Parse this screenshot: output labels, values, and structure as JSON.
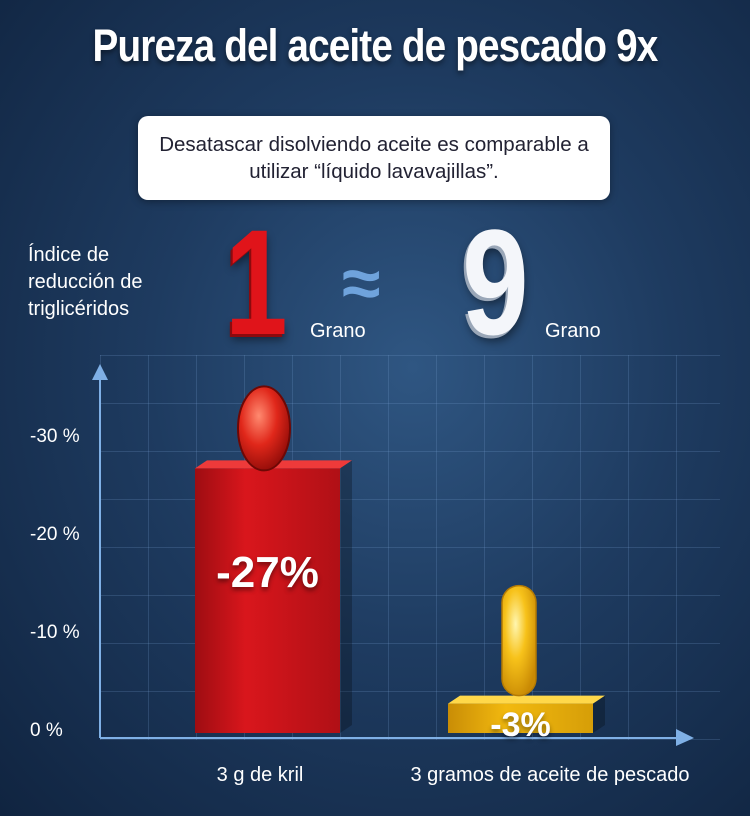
{
  "title": "Pureza del aceite de pescado 9x",
  "note": "Desatascar disolviendo aceite es comparable a utilizar “líquido lavavajillas”.",
  "comparison": {
    "left_number": "1",
    "left_unit": "Grano",
    "symbol": "≈",
    "right_number": "9",
    "right_unit": "Grano"
  },
  "colors": {
    "krill_bar": "#d9161c",
    "fish_oil_bar": "#f2b90f",
    "axis": "#7fb0e6"
  },
  "chart_data": {
    "type": "bar",
    "ylabel": "Índice de reducción de triglicéridos",
    "yticks": [
      "0 %",
      "-10 %",
      "-20 %",
      "-30 %"
    ],
    "ylim": [
      0,
      -30
    ],
    "categories": [
      "3 g de kril",
      "3 gramos de aceite de pescado"
    ],
    "values": [
      -27,
      -3
    ],
    "data_labels": [
      "-27%",
      "-3%"
    ],
    "legend": "none",
    "grid": true
  }
}
